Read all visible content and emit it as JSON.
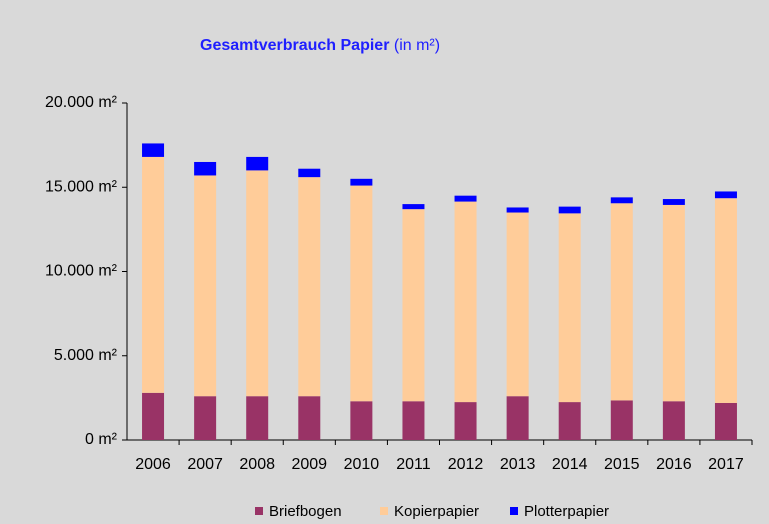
{
  "chart_data": {
    "type": "stacked_bar",
    "title": "Gesamtverbrauch Papier",
    "subtitle": "(in m²)",
    "categories": [
      "2006",
      "2007",
      "2008",
      "2009",
      "2010",
      "2011",
      "2012",
      "2013",
      "2014",
      "2015",
      "2016",
      "2017"
    ],
    "series": [
      {
        "name": "Briefbogen",
        "color": "#993366",
        "values": [
          2800,
          2600,
          2600,
          2600,
          2300,
          2300,
          2250,
          2600,
          2250,
          2350,
          2300,
          2200
        ]
      },
      {
        "name": "Kopierpapier",
        "color": "#ffcc99",
        "values": [
          14000,
          13100,
          13400,
          13000,
          12800,
          11400,
          11900,
          10900,
          11200,
          11700,
          11650,
          12150
        ]
      },
      {
        "name": "Plotterpapier",
        "color": "#0000ff",
        "values": [
          800,
          800,
          800,
          500,
          400,
          300,
          350,
          300,
          400,
          350,
          350,
          400
        ]
      }
    ],
    "ylim": [
      0,
      20000
    ],
    "yticks": [
      {
        "value": 0,
        "label": "0 m²"
      },
      {
        "value": 5000,
        "label": "5.000 m²"
      },
      {
        "value": 10000,
        "label": "10.000 m²"
      },
      {
        "value": 15000,
        "label": "15.000 m²"
      },
      {
        "value": 20000,
        "label": "20.000 m²"
      }
    ],
    "legend": "bottom"
  }
}
